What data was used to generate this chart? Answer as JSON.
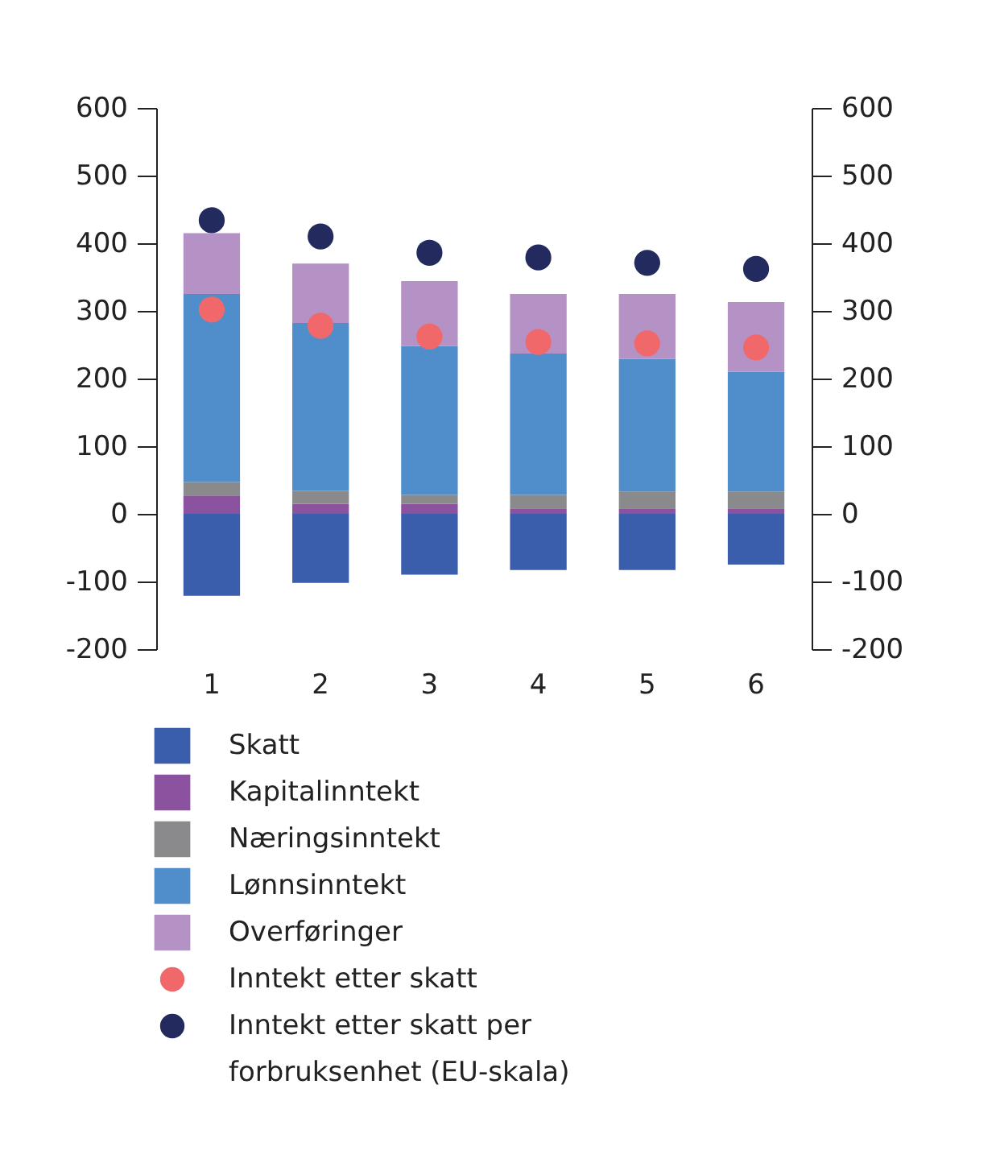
{
  "chart_data": {
    "type": "bar",
    "stacked": true,
    "categories": [
      "1",
      "2",
      "3",
      "4",
      "5",
      "6"
    ],
    "series": [
      {
        "name": "Skatt",
        "color": "#3a5eab",
        "values": [
          -121,
          -102,
          -90,
          -83,
          -83,
          -75
        ]
      },
      {
        "name": "Kapitalinntekt",
        "color": "#8b52a0",
        "values": [
          27,
          15,
          15,
          8,
          8,
          8
        ]
      },
      {
        "name": "Næringsinntekt",
        "color": "#8a8a8d",
        "values": [
          20,
          19,
          13,
          20,
          25,
          25
        ]
      },
      {
        "name": "Lønnsinntekt",
        "color": "#4f8ecb",
        "values": [
          278,
          248,
          220,
          209,
          196,
          177
        ]
      },
      {
        "name": "Overføringer",
        "color": "#b592c5",
        "values": [
          90,
          88,
          96,
          88,
          96,
          103
        ]
      },
      {
        "name": "Inntekt etter skatt",
        "type": "scatter",
        "marker": "circle",
        "color": "#f1686b",
        "x": [
          "1",
          "2",
          "3",
          "4",
          "5",
          "6"
        ],
        "values": [
          302,
          278,
          262,
          254,
          252,
          246
        ]
      },
      {
        "name": "Inntekt etter skatt per forbruksenhet (EU-skala)",
        "type": "scatter",
        "marker": "circle",
        "color": "#222a5e",
        "x": [
          "1",
          "2",
          "3",
          "4",
          "5",
          "6"
        ],
        "values": [
          434,
          410,
          386,
          379,
          371,
          362
        ]
      }
    ],
    "ylim": [
      -200,
      600
    ],
    "yticks": [
      -200,
      -100,
      0,
      100,
      200,
      300,
      400,
      500,
      600
    ],
    "y2lim": [
      -200,
      600
    ],
    "y2ticks": [
      -200,
      -100,
      0,
      100,
      200,
      300,
      400,
      500,
      600
    ],
    "legend": "bottom"
  }
}
